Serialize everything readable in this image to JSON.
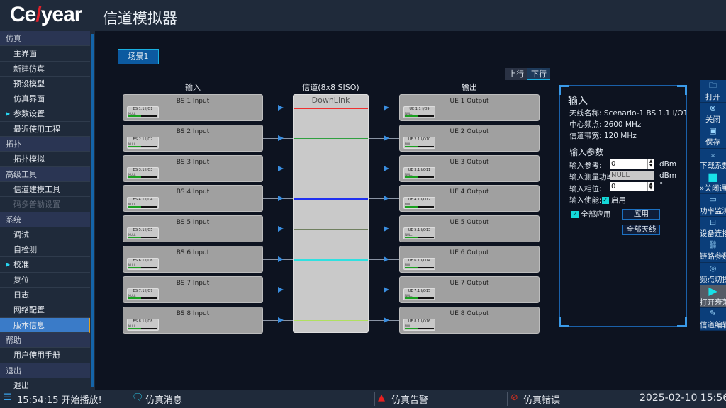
{
  "header": {
    "logo": "Ceyear",
    "title": "信道模拟器"
  },
  "sidebar": {
    "items": [
      {
        "label": "仿真",
        "type": "header"
      },
      {
        "label": "主界面"
      },
      {
        "label": "新建仿真"
      },
      {
        "label": "预设模型"
      },
      {
        "label": "仿真界面"
      },
      {
        "label": "参数设置",
        "arrow": true
      },
      {
        "label": "最近使用工程"
      },
      {
        "label": "拓扑",
        "type": "header"
      },
      {
        "label": "拓扑模拟"
      },
      {
        "label": "高级工具",
        "type": "header"
      },
      {
        "label": "信道建模工具"
      },
      {
        "label": "码多普勒设置",
        "disabled": true
      },
      {
        "label": "系统",
        "type": "header"
      },
      {
        "label": "调试"
      },
      {
        "label": "自检测"
      },
      {
        "label": "校准",
        "arrow": true
      },
      {
        "label": "复位"
      },
      {
        "label": "日志"
      },
      {
        "label": "网络配置"
      },
      {
        "label": "版本信息",
        "selected": true
      },
      {
        "label": "帮助",
        "type": "header"
      },
      {
        "label": "用户使用手册"
      },
      {
        "label": "退出",
        "type": "header"
      },
      {
        "label": "退出"
      }
    ]
  },
  "main": {
    "scene_tab": "场景1",
    "direction": {
      "up": "上行",
      "down": "下行",
      "active": "下行"
    },
    "col_input": "输入",
    "col_channel": "信道(8x8 SISO)",
    "col_output": "输出",
    "channel_mode": "DownLink",
    "inputs": [
      {
        "title": "BS 1 Input",
        "port": "BS 1.1 I/O1",
        "value": "NULL",
        "level": 0.45
      },
      {
        "title": "BS 2 Input",
        "port": "BS 2.1 I/O2",
        "value": "NULL",
        "level": 0.45
      },
      {
        "title": "BS 3 Input",
        "port": "BS 3.1 I/O3",
        "value": "NULL",
        "level": 0.45
      },
      {
        "title": "BS 4 Input",
        "port": "BS 4.1 I/O4",
        "value": "NULL",
        "level": 0.45
      },
      {
        "title": "BS 5 Input",
        "port": "BS 5.1 I/O5",
        "value": "NULL",
        "level": 0.45
      },
      {
        "title": "BS 6 Input",
        "port": "BS 6.1 I/O6",
        "value": "NULL",
        "level": 0.45
      },
      {
        "title": "BS 7 Input",
        "port": "BS 7.1 I/O7",
        "value": "NULL",
        "level": 0.45
      },
      {
        "title": "BS 8 Input",
        "port": "BS 8.1 I/O8",
        "value": "NULL",
        "level": 0.45
      }
    ],
    "outputs": [
      {
        "title": "UE 1 Output",
        "port": "UE 1.1 I/O9",
        "value": "NULL",
        "level": 0.45
      },
      {
        "title": "UE 2 Output",
        "port": "UE 2.1 I/O10",
        "value": "NULL",
        "level": 0.45
      },
      {
        "title": "UE 3 Output",
        "port": "UE 3.1 I/O11",
        "value": "NULL",
        "level": 0.45
      },
      {
        "title": "UE 4 Output",
        "port": "UE 4.1 I/O12",
        "value": "NULL",
        "level": 0.45
      },
      {
        "title": "UE 5 Output",
        "port": "UE 5.1 I/O13",
        "value": "NULL",
        "level": 0.45
      },
      {
        "title": "UE 6 Output",
        "port": "UE 6.1 I/O14",
        "value": "NULL",
        "level": 0.45
      },
      {
        "title": "UE 7 Output",
        "port": "UE 7.1 I/O15",
        "value": "NULL",
        "level": 0.45
      },
      {
        "title": "UE 8 Output",
        "port": "UE 8.1 I/O16",
        "value": "NULL",
        "level": 0.45
      }
    ],
    "channel_colors": [
      "#f03030",
      "#30a040",
      "#e8e820",
      "#2030f0",
      "#708060",
      "#30e0e0",
      "#a020a0",
      "#b0e060"
    ]
  },
  "panel": {
    "title": "输入",
    "antenna": "天线名称: Scenario-1  BS 1.1 I/O1",
    "freq": "中心频点: 2600 MHz",
    "bw": "信道带宽: 120   MHz",
    "params_title": "输入参数",
    "ref_label": "输入参考:",
    "ref_value": "0",
    "ref_unit": "dBm",
    "meas_label": "输入测量功率:",
    "meas_value": "NULL",
    "meas_unit": "dBm",
    "phase_label": "输入相位:",
    "phase_value": "0",
    "phase_unit": "°",
    "enable_label": "输入使能:",
    "enable_text": "启用",
    "apply_all": "全部应用",
    "apply_btn": "应用",
    "all_ant_btn": "全部天线"
  },
  "toolbar": [
    {
      "label": "打开",
      "icon": "folder-icon",
      "g": "🗀"
    },
    {
      "label": "关闭",
      "icon": "close-icon",
      "g": "⊗"
    },
    {
      "label": "保存",
      "icon": "save-icon",
      "g": "▣"
    },
    {
      "label": "下载系数",
      "icon": "download-icon",
      "g": "⤓"
    },
    {
      "label": "»关闭通道",
      "icon": "square-icon",
      "g": "■"
    },
    {
      "label": "功率监测",
      "icon": "monitor-icon",
      "g": "▭"
    },
    {
      "label": "设备连接",
      "icon": "network-icon",
      "g": "⊞"
    },
    {
      "label": "链路参数",
      "icon": "link-icon",
      "g": "⛓"
    },
    {
      "label": "频点切换",
      "icon": "frequency-icon",
      "g": "◎"
    },
    {
      "label": "打开衰落",
      "icon": "play-icon",
      "g": "▶"
    },
    {
      "label": "信道编辑",
      "icon": "edit-icon",
      "g": "✎"
    }
  ],
  "status": {
    "message": "15:54:15 开始播放!",
    "sim_msg": "仿真消息",
    "sim_warn": "仿真告警",
    "sim_err": "仿真错误",
    "datetime": "2025-02-10  15:56"
  }
}
